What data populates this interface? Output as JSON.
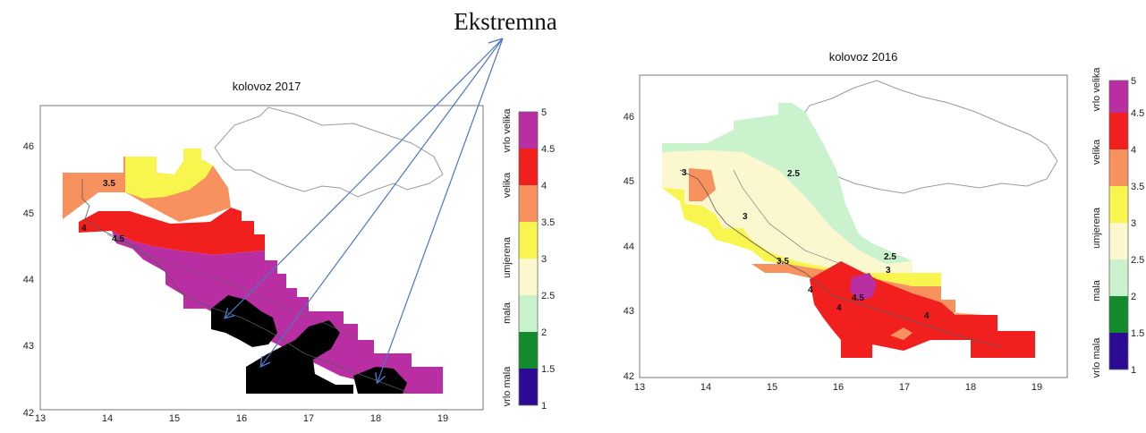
{
  "annotation": {
    "label": "Ekstremna"
  },
  "legend_scale": {
    "levels": [
      1,
      1.5,
      2,
      2.5,
      3,
      3.5,
      4,
      4.5,
      5
    ],
    "colors": [
      "#2c0a94",
      "#138a2c",
      "#c9f2cd",
      "#fbf7cf",
      "#f8f54e",
      "#f7915d",
      "#f21f1f",
      "#b92ea3"
    ],
    "categories": [
      "vrlo mala",
      "mala",
      "umjerena",
      "velika",
      "vrlo velika"
    ]
  },
  "chart_data": [
    {
      "type": "heatmap",
      "title": "kolovoz 2017",
      "xlim": [
        13,
        19.6
      ],
      "ylim": [
        42,
        46.6
      ],
      "xticks": [
        13,
        14,
        15,
        16,
        17,
        18,
        19
      ],
      "yticks": [
        42,
        43,
        44,
        45,
        46
      ],
      "contour_labels": [
        "3.5",
        "4",
        "4.5"
      ],
      "class_values": {
        "vrlo velika": "4.5-5",
        "velika": "3.5-4.5",
        "umjerena": "2.5-3.5",
        "Ekstremna": ">5"
      }
    },
    {
      "type": "heatmap",
      "title": "kolovoz 2016",
      "xlim": [
        13,
        19.5
      ],
      "ylim": [
        42,
        46.6
      ],
      "xticks": [
        13,
        14,
        15,
        16,
        17,
        18,
        19
      ],
      "yticks": [
        42,
        43,
        44,
        45,
        46
      ],
      "contour_labels": [
        "2.5",
        "3",
        "3",
        "2.5",
        "3",
        "3.5",
        "4",
        "4",
        "4.5",
        "4"
      ],
      "class_values": {
        "vrlo velika": "4.5-5",
        "velika": "3.5-4.5",
        "umjerena": "2.5-3.5",
        "mala": "2-2.5"
      }
    }
  ]
}
